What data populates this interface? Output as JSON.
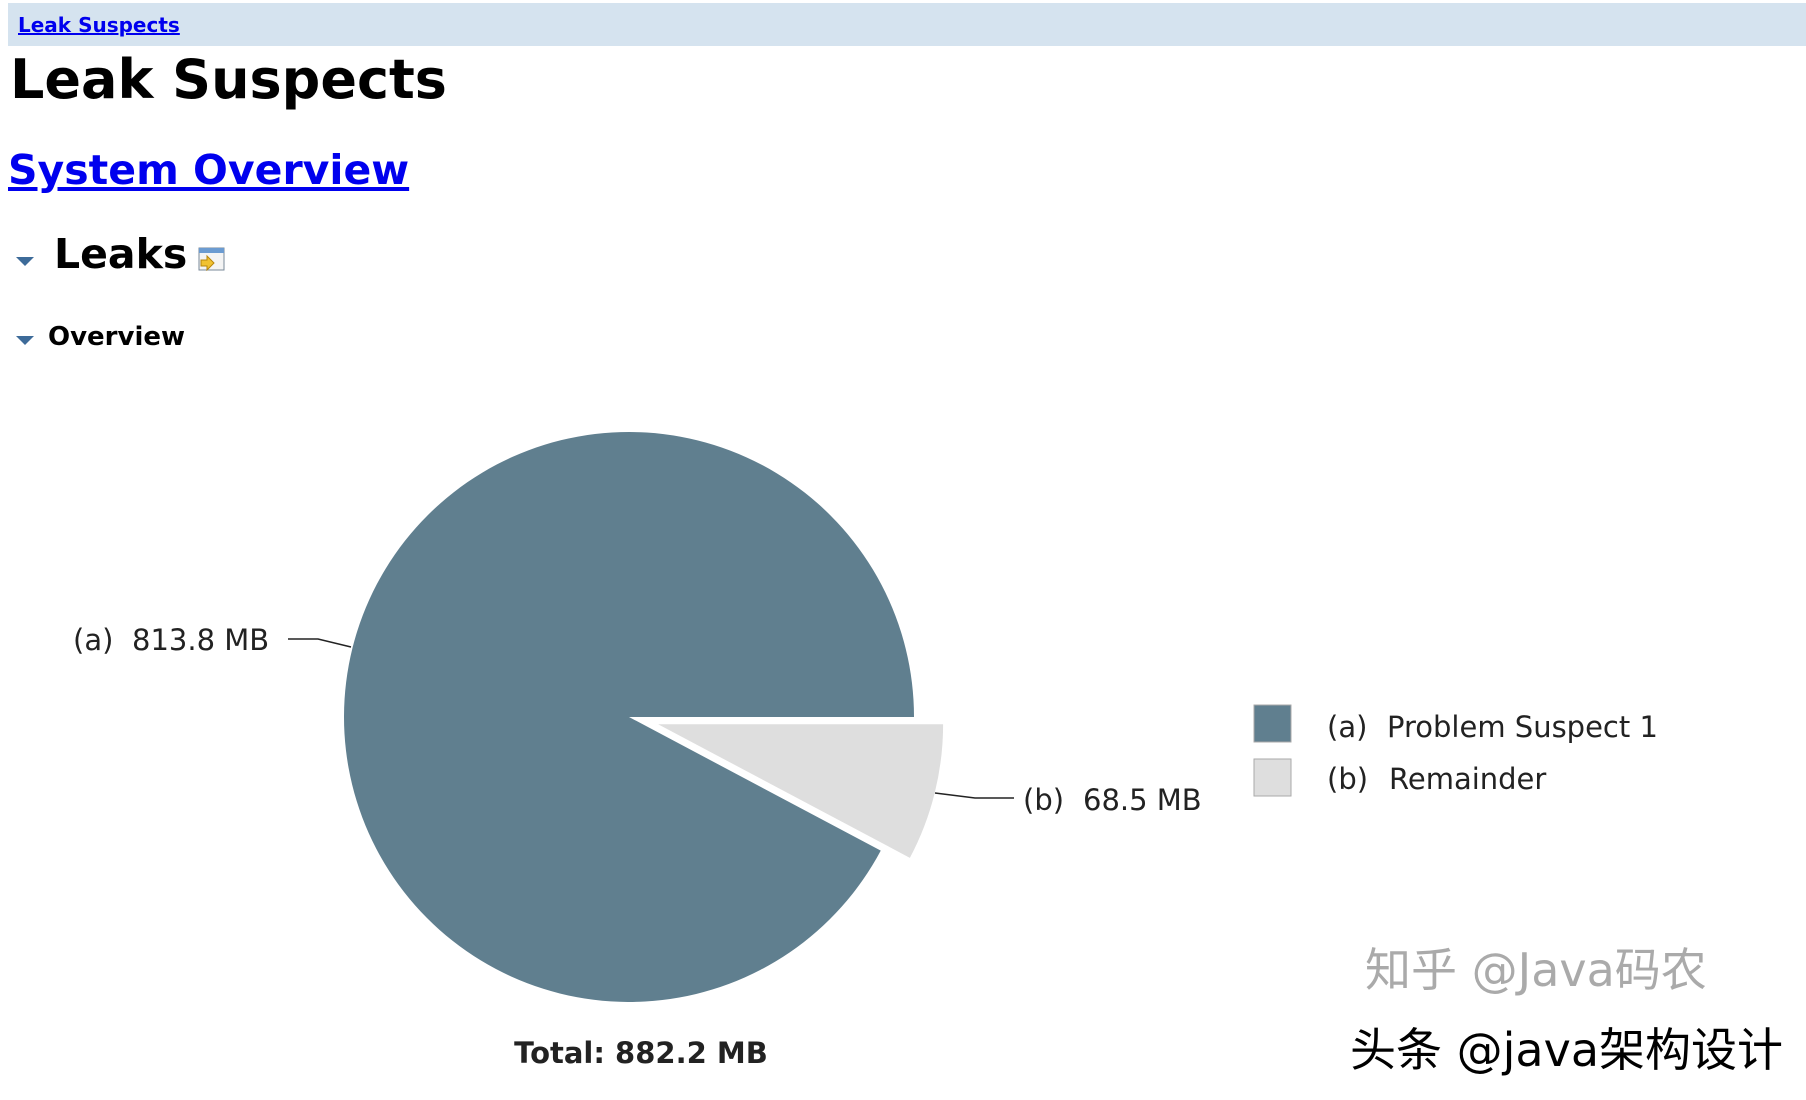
{
  "breadcrumb": {
    "label": "Leak Suspects"
  },
  "page_title": "Leak Suspects",
  "system_overview_link": "System Overview",
  "sections": {
    "leaks": "Leaks",
    "overview": "Overview"
  },
  "colors": {
    "suspect": "#607f8f",
    "remainder": "#dedede",
    "link": "#0000ee",
    "header_bg": "#d5e3ef"
  },
  "chart_data": {
    "type": "pie",
    "slices": [
      {
        "key": "(a)",
        "name": "Problem Suspect 1",
        "value": 813.8,
        "unit": "MB",
        "label": "813.8 MB",
        "exploded": false
      },
      {
        "key": "(b)",
        "name": "Remainder",
        "value": 68.5,
        "unit": "MB",
        "label": "68.5 MB",
        "exploded": true
      }
    ],
    "legend_placement": "right",
    "total_label": "Total: 882.2 MB"
  },
  "watermark": {
    "line1": "知乎 @Java码农",
    "line2": "头条 @java架构设计"
  }
}
